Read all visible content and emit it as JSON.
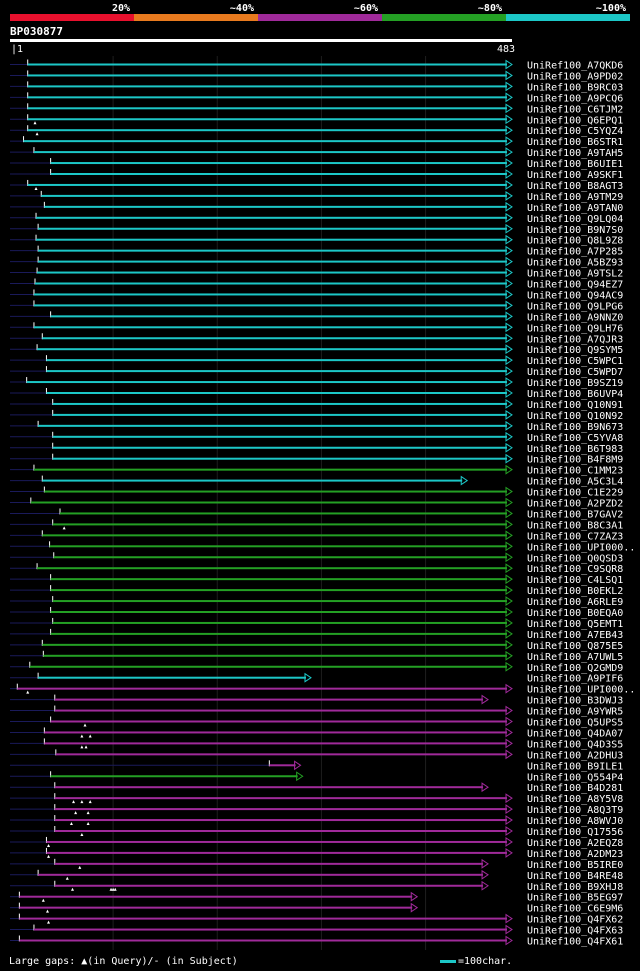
{
  "chart_data": {
    "type": "alignment-overview",
    "title": "BP030877",
    "query_start": 1,
    "query_end": 483,
    "identity_legend": [
      {
        "label": "20%",
        "color": "#e8102d"
      },
      {
        "label": "~40%",
        "color": "#e87a1e"
      },
      {
        "label": "~60%",
        "color": "#a02a9a"
      },
      {
        "label": "~80%",
        "color": "#24a024"
      },
      {
        "label": "~100%",
        "color": "#1cc7c7"
      }
    ],
    "hits": [
      {
        "id": "UniRef100_A7QKD6",
        "start": 18,
        "end": 483,
        "color": "#1cc7c7",
        "gaps": []
      },
      {
        "id": "UniRef100_A9PD02",
        "start": 18,
        "end": 483,
        "color": "#1cc7c7",
        "gaps": []
      },
      {
        "id": "UniRef100_B9RC03",
        "start": 18,
        "end": 483,
        "color": "#1cc7c7",
        "gaps": []
      },
      {
        "id": "UniRef100_A9PCQ6",
        "start": 18,
        "end": 483,
        "color": "#1cc7c7",
        "gaps": []
      },
      {
        "id": "UniRef100_C6TJM2",
        "start": 18,
        "end": 483,
        "color": "#1cc7c7",
        "gaps": []
      },
      {
        "id": "UniRef100_Q6EPQ1",
        "start": 18,
        "end": 483,
        "color": "#1cc7c7",
        "gaps": [
          25
        ]
      },
      {
        "id": "UniRef100_C5YQZ4",
        "start": 18,
        "end": 483,
        "color": "#1cc7c7",
        "gaps": [
          27
        ]
      },
      {
        "id": "UniRef100_B6STR1",
        "start": 14,
        "end": 483,
        "color": "#1cc7c7",
        "gaps": []
      },
      {
        "id": "UniRef100_A9TAH5",
        "start": 24,
        "end": 483,
        "color": "#1cc7c7",
        "gaps": []
      },
      {
        "id": "UniRef100_B6UIE1",
        "start": 40,
        "end": 483,
        "color": "#1cc7c7",
        "gaps": []
      },
      {
        "id": "UniRef100_A9SKF1",
        "start": 40,
        "end": 483,
        "color": "#1cc7c7",
        "gaps": []
      },
      {
        "id": "UniRef100_B8AGT3",
        "start": 18,
        "end": 483,
        "color": "#1cc7c7",
        "gaps": [
          26
        ]
      },
      {
        "id": "UniRef100_A9TM29",
        "start": 31,
        "end": 483,
        "color": "#1cc7c7",
        "gaps": []
      },
      {
        "id": "UniRef100_A9TAN0",
        "start": 34,
        "end": 483,
        "color": "#1cc7c7",
        "gaps": []
      },
      {
        "id": "UniRef100_Q9LQ04",
        "start": 26,
        "end": 483,
        "color": "#1cc7c7",
        "gaps": []
      },
      {
        "id": "UniRef100_B9N7S0",
        "start": 28,
        "end": 483,
        "color": "#1cc7c7",
        "gaps": []
      },
      {
        "id": "UniRef100_Q8L9Z8",
        "start": 26,
        "end": 483,
        "color": "#1cc7c7",
        "gaps": []
      },
      {
        "id": "UniRef100_A7P285",
        "start": 28,
        "end": 483,
        "color": "#1cc7c7",
        "gaps": []
      },
      {
        "id": "UniRef100_A5BZ93",
        "start": 28,
        "end": 483,
        "color": "#1cc7c7",
        "gaps": []
      },
      {
        "id": "UniRef100_A9TSL2",
        "start": 27,
        "end": 483,
        "color": "#1cc7c7",
        "gaps": []
      },
      {
        "id": "UniRef100_Q94EZ7",
        "start": 25,
        "end": 483,
        "color": "#1cc7c7",
        "gaps": []
      },
      {
        "id": "UniRef100_Q94AC9",
        "start": 24,
        "end": 483,
        "color": "#1cc7c7",
        "gaps": []
      },
      {
        "id": "UniRef100_Q9LPG6",
        "start": 24,
        "end": 483,
        "color": "#1cc7c7",
        "gaps": []
      },
      {
        "id": "UniRef100_A9NNZ0",
        "start": 40,
        "end": 483,
        "color": "#1cc7c7",
        "gaps": []
      },
      {
        "id": "UniRef100_Q9LH76",
        "start": 24,
        "end": 483,
        "color": "#1cc7c7",
        "gaps": []
      },
      {
        "id": "UniRef100_A7QJR3",
        "start": 32,
        "end": 483,
        "color": "#1cc7c7",
        "gaps": []
      },
      {
        "id": "UniRef100_Q9SYM5",
        "start": 27,
        "end": 483,
        "color": "#1cc7c7",
        "gaps": []
      },
      {
        "id": "UniRef100_C5WPC1",
        "start": 36,
        "end": 483,
        "color": "#1cc7c7",
        "gaps": []
      },
      {
        "id": "UniRef100_C5WPD7",
        "start": 36,
        "end": 483,
        "color": "#1cc7c7",
        "gaps": []
      },
      {
        "id": "UniRef100_B9SZ19",
        "start": 17,
        "end": 483,
        "color": "#1cc7c7",
        "gaps": []
      },
      {
        "id": "UniRef100_B6UVP4",
        "start": 36,
        "end": 483,
        "color": "#1cc7c7",
        "gaps": []
      },
      {
        "id": "UniRef100_Q10N91",
        "start": 42,
        "end": 483,
        "color": "#1cc7c7",
        "gaps": []
      },
      {
        "id": "UniRef100_Q10N92",
        "start": 42,
        "end": 483,
        "color": "#1cc7c7",
        "gaps": []
      },
      {
        "id": "UniRef100_B9N673",
        "start": 28,
        "end": 483,
        "color": "#1cc7c7",
        "gaps": []
      },
      {
        "id": "UniRef100_C5YVA8",
        "start": 42,
        "end": 483,
        "color": "#1cc7c7",
        "gaps": []
      },
      {
        "id": "UniRef100_B6T983",
        "start": 42,
        "end": 483,
        "color": "#1cc7c7",
        "gaps": []
      },
      {
        "id": "UniRef100_B4F8M9",
        "start": 42,
        "end": 483,
        "color": "#1cc7c7",
        "gaps": []
      },
      {
        "id": "UniRef100_C1MM23",
        "start": 24,
        "end": 483,
        "color": "#24a024",
        "gaps": []
      },
      {
        "id": "UniRef100_A5C3L4",
        "start": 32,
        "end": 440,
        "color": "#1cc7c7",
        "gaps": []
      },
      {
        "id": "UniRef100_C1E229",
        "start": 34,
        "end": 483,
        "color": "#24a024",
        "gaps": []
      },
      {
        "id": "UniRef100_A2PZD2",
        "start": 21,
        "end": 483,
        "color": "#24a024",
        "gaps": []
      },
      {
        "id": "UniRef100_B7GAV2",
        "start": 49,
        "end": 483,
        "color": "#24a024",
        "gaps": []
      },
      {
        "id": "UniRef100_B8C3A1",
        "start": 42,
        "end": 483,
        "color": "#24a024",
        "gaps": [
          53
        ]
      },
      {
        "id": "UniRef100_C7ZAZ3",
        "start": 32,
        "end": 483,
        "color": "#24a024",
        "gaps": []
      },
      {
        "id": "UniRef100_UPI000..",
        "start": 39,
        "end": 483,
        "color": "#24a024",
        "gaps": []
      },
      {
        "id": "UniRef100_Q0QSD3",
        "start": 43,
        "end": 483,
        "color": "#24a024",
        "gaps": []
      },
      {
        "id": "UniRef100_C9SQR8",
        "start": 27,
        "end": 483,
        "color": "#24a024",
        "gaps": []
      },
      {
        "id": "UniRef100_C4LSQ1",
        "start": 40,
        "end": 483,
        "color": "#24a024",
        "gaps": []
      },
      {
        "id": "UniRef100_B0EKL2",
        "start": 40,
        "end": 483,
        "color": "#24a024",
        "gaps": []
      },
      {
        "id": "UniRef100_A6RLE9",
        "start": 42,
        "end": 483,
        "color": "#24a024",
        "gaps": []
      },
      {
        "id": "UniRef100_B0EQA0",
        "start": 40,
        "end": 483,
        "color": "#24a024",
        "gaps": []
      },
      {
        "id": "UniRef100_Q5EMT1",
        "start": 42,
        "end": 483,
        "color": "#24a024",
        "gaps": []
      },
      {
        "id": "UniRef100_A7EB43",
        "start": 40,
        "end": 483,
        "color": "#24a024",
        "gaps": []
      },
      {
        "id": "UniRef100_Q875E5",
        "start": 32,
        "end": 483,
        "color": "#24a024",
        "gaps": []
      },
      {
        "id": "UniRef100_A7UWL5",
        "start": 33,
        "end": 483,
        "color": "#24a024",
        "gaps": []
      },
      {
        "id": "UniRef100_Q2GMD9",
        "start": 20,
        "end": 483,
        "color": "#24a024",
        "gaps": []
      },
      {
        "id": "UniRef100_A9PIF6",
        "start": 28,
        "end": 290,
        "color": "#1cc7c7",
        "gaps": []
      },
      {
        "id": "UniRef100_UPI000..",
        "start": 8,
        "end": 483,
        "color": "#a02a9a",
        "gaps": [
          18
        ]
      },
      {
        "id": "UniRef100_B3DWJ3",
        "start": 44,
        "end": 460,
        "color": "#a02a9a",
        "gaps": []
      },
      {
        "id": "UniRef100_A9YWR5",
        "start": 44,
        "end": 483,
        "color": "#a02a9a",
        "gaps": []
      },
      {
        "id": "UniRef100_Q5UPS5",
        "start": 40,
        "end": 483,
        "color": "#a02a9a",
        "gaps": [
          73
        ]
      },
      {
        "id": "UniRef100_Q4DA07",
        "start": 34,
        "end": 483,
        "color": "#a02a9a",
        "gaps": [
          70,
          78
        ]
      },
      {
        "id": "UniRef100_Q4D3S5",
        "start": 34,
        "end": 483,
        "color": "#a02a9a",
        "gaps": [
          70,
          74
        ]
      },
      {
        "id": "UniRef100_A2DHU3",
        "start": 45,
        "end": 483,
        "color": "#a02a9a",
        "gaps": []
      },
      {
        "id": "UniRef100_B9ILE1",
        "start": 250,
        "end": 280,
        "color": "#a02a9a",
        "gaps": []
      },
      {
        "id": "UniRef100_Q554P4",
        "start": 40,
        "end": 282,
        "color": "#24a024",
        "gaps": []
      },
      {
        "id": "UniRef100_B4D281",
        "start": 44,
        "end": 460,
        "color": "#a02a9a",
        "gaps": []
      },
      {
        "id": "UniRef100_A8Y5V8",
        "start": 44,
        "end": 483,
        "color": "#a02a9a",
        "gaps": [
          62,
          70,
          78
        ]
      },
      {
        "id": "UniRef100_A8Q3T9",
        "start": 44,
        "end": 483,
        "color": "#a02a9a",
        "gaps": [
          64,
          76
        ]
      },
      {
        "id": "UniRef100_A8WVJ0",
        "start": 44,
        "end": 483,
        "color": "#a02a9a",
        "gaps": [
          60,
          76
        ]
      },
      {
        "id": "UniRef100_Q17556",
        "start": 44,
        "end": 483,
        "color": "#a02a9a",
        "gaps": [
          70
        ]
      },
      {
        "id": "UniRef100_A2EQZ8",
        "start": 36,
        "end": 483,
        "color": "#a02a9a",
        "gaps": [
          38
        ]
      },
      {
        "id": "UniRef100_A2DM23",
        "start": 36,
        "end": 483,
        "color": "#a02a9a",
        "gaps": [
          38
        ]
      },
      {
        "id": "UniRef100_B5IRE0",
        "start": 44,
        "end": 460,
        "color": "#a02a9a",
        "gaps": [
          68
        ]
      },
      {
        "id": "UniRef100_B4RE48",
        "start": 28,
        "end": 460,
        "color": "#a02a9a",
        "gaps": [
          56
        ]
      },
      {
        "id": "UniRef100_B9XHJ8",
        "start": 44,
        "end": 460,
        "color": "#a02a9a",
        "gaps": [
          61,
          98,
          100,
          102
        ]
      },
      {
        "id": "UniRef100_B5EG97",
        "start": 10,
        "end": 392,
        "color": "#a02a9a",
        "gaps": [
          33
        ]
      },
      {
        "id": "UniRef100_C6E9M6",
        "start": 10,
        "end": 392,
        "color": "#a02a9a",
        "gaps": [
          37
        ]
      },
      {
        "id": "UniRef100_Q4FX62",
        "start": 10,
        "end": 483,
        "color": "#a02a9a",
        "gaps": [
          38
        ]
      },
      {
        "id": "UniRef100_Q4FX63",
        "start": 24,
        "end": 483,
        "color": "#a02a9a",
        "gaps": []
      },
      {
        "id": "UniRef100_Q4FX61",
        "start": 10,
        "end": 483,
        "color": "#a02a9a",
        "gaps": []
      }
    ]
  },
  "footer": {
    "gaps_label": "Large gaps:",
    "query_symbol": "▲",
    "query_text": "(in Query)/",
    "subject_symbol": "-",
    "subject_text": " (in Subject)",
    "scale_label": "=100char."
  }
}
